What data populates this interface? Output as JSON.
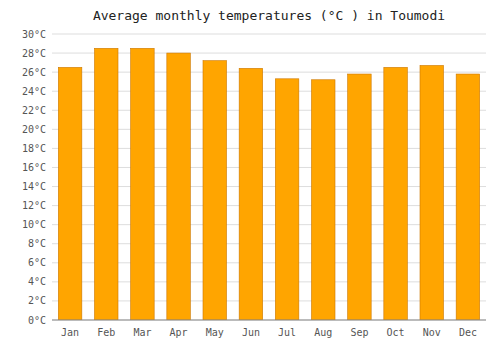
{
  "chart_data": {
    "type": "bar",
    "title": "Average monthly temperatures (°C ) in Toumodi",
    "categories": [
      "Jan",
      "Feb",
      "Mar",
      "Apr",
      "May",
      "Jun",
      "Jul",
      "Aug",
      "Sep",
      "Oct",
      "Nov",
      "Dec"
    ],
    "values": [
      26.5,
      28.5,
      28.5,
      28.0,
      27.2,
      26.4,
      25.3,
      25.2,
      25.8,
      26.5,
      26.7,
      25.8
    ],
    "color": "#FFA500",
    "ylim": [
      0,
      30
    ],
    "yticks": [
      {
        "value": 0,
        "label": "0°C"
      },
      {
        "value": 2,
        "label": "2°C"
      },
      {
        "value": 4,
        "label": "4°C"
      },
      {
        "value": 6,
        "label": "6°C"
      },
      {
        "value": 8,
        "label": "8°C"
      },
      {
        "value": 10,
        "label": "10°C"
      },
      {
        "value": 12,
        "label": "12°C"
      },
      {
        "value": 14,
        "label": "14°C"
      },
      {
        "value": 16,
        "label": "16°C"
      },
      {
        "value": 18,
        "label": "18°C"
      },
      {
        "value": 20,
        "label": "20°C"
      },
      {
        "value": 22,
        "label": "22°C"
      },
      {
        "value": 24,
        "label": "24°C"
      },
      {
        "value": 26,
        "label": "26°C"
      },
      {
        "value": 28,
        "label": "28°C"
      },
      {
        "value": 30,
        "label": "30°C"
      }
    ],
    "grid": true
  }
}
